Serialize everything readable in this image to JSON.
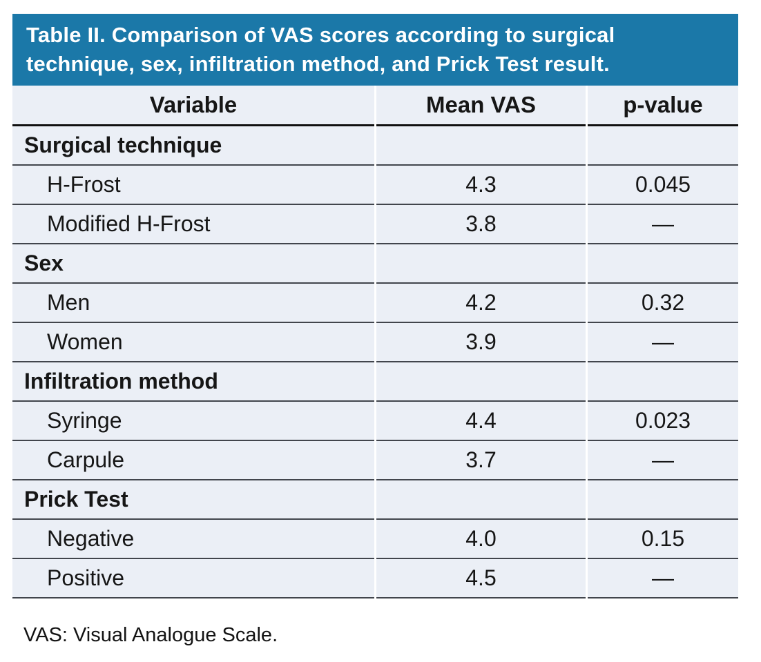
{
  "title": "Table II. Comparison of VAS scores according to surgical technique, sex, infiltration method, and Prick Test result.",
  "columns": [
    "Variable",
    "Mean VAS",
    "p-value"
  ],
  "sections": [
    {
      "name": "Surgical technique",
      "rows": [
        {
          "label": "H-Frost",
          "mean": "4.3",
          "p": "0.045"
        },
        {
          "label": "Modified H-Frost",
          "mean": "3.8",
          "p": "—"
        }
      ]
    },
    {
      "name": "Sex",
      "rows": [
        {
          "label": "Men",
          "mean": "4.2",
          "p": "0.32"
        },
        {
          "label": "Women",
          "mean": "3.9",
          "p": "—"
        }
      ]
    },
    {
      "name": "Infiltration method",
      "rows": [
        {
          "label": "Syringe",
          "mean": "4.4",
          "p": "0.023"
        },
        {
          "label": "Carpule",
          "mean": "3.7",
          "p": "—"
        }
      ]
    },
    {
      "name": "Prick Test",
      "rows": [
        {
          "label": "Negative",
          "mean": "4.0",
          "p": "0.15"
        },
        {
          "label": "Positive",
          "mean": "4.5",
          "p": "—"
        }
      ]
    }
  ],
  "footnote": "VAS: Visual Analogue Scale.",
  "colors": {
    "header_blue": "#1B78A8",
    "row_bg": "#EBEFF6",
    "separator": "#41454C",
    "header_underline": "#101010",
    "title_text": "#FFFFFF",
    "body_text": "#161616"
  }
}
